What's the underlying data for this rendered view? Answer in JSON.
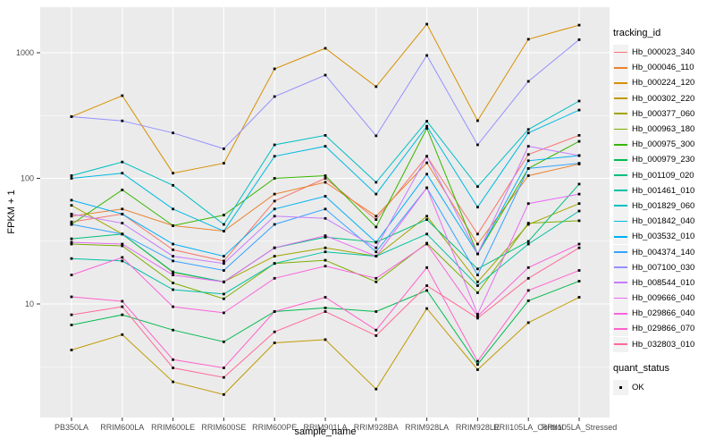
{
  "chart_data": {
    "type": "line",
    "title": "",
    "xlabel": "sample_name",
    "ylabel": "FPKM + 1",
    "y_scale": "log10",
    "y_ticks": [
      10,
      100,
      1000
    ],
    "y_minor_ticks": [
      3.162,
      31.62,
      316.2
    ],
    "ylim": [
      1.25,
      2300
    ],
    "legend_position": "right",
    "grid": "on",
    "panel_bg": "#EBEBEB",
    "grid_color": "#FFFFFF",
    "point_color": "#000000",
    "tick_label_color": "#4D4D4D",
    "categories": [
      "PB350LA",
      "RRIM600LA",
      "RRIM600LE",
      "RRIM600SE",
      "RRIM600PE",
      "RRIM901LA",
      "RRIM928BA",
      "RRIM928LA",
      "RRIM928LE",
      "RRII105LA_Control",
      "RRII105LA_Stressed"
    ],
    "series": [
      {
        "name": "Hb_000023_340",
        "color": "#F8766D",
        "values": [
          45,
          52,
          27,
          22,
          66,
          100,
          47,
          150,
          36,
          155,
          220
        ]
      },
      {
        "name": "Hb_000046_110",
        "color": "#EA8331",
        "values": [
          50,
          57,
          42,
          38,
          75,
          93,
          50,
          133,
          30,
          105,
          130
        ]
      },
      {
        "name": "Hb_000224_120",
        "color": "#D89000",
        "values": [
          310,
          455,
          110,
          132,
          745,
          1085,
          537,
          1690,
          288,
          1280,
          1660
        ]
      },
      {
        "name": "Hb_000302_220",
        "color": "#C09B00",
        "values": [
          4.3,
          5.7,
          2.4,
          1.9,
          4.9,
          5.2,
          2.1,
          9.2,
          3,
          7.1,
          11.3
        ]
      },
      {
        "name": "Hb_000377_060",
        "color": "#A3A500",
        "values": [
          61,
          36,
          17.8,
          15,
          24,
          28,
          24,
          50,
          15,
          43,
          63
        ]
      },
      {
        "name": "Hb_000963_180",
        "color": "#7CAE00",
        "values": [
          30,
          29,
          14.7,
          11,
          21,
          22.3,
          15,
          30.5,
          12.3,
          44,
          46
        ]
      },
      {
        "name": "Hb_000975_300",
        "color": "#39B600",
        "values": [
          43,
          81,
          42,
          51,
          100,
          105,
          41,
          250,
          25,
          120,
          197
        ]
      },
      {
        "name": "Hb_000979_230",
        "color": "#00BB4E",
        "values": [
          6.8,
          8.2,
          6.2,
          5,
          8.7,
          9.3,
          8.7,
          12.8,
          3.3,
          10.6,
          15.2
        ]
      },
      {
        "name": "Hb_001109_020",
        "color": "#00BF7D",
        "values": [
          33,
          36,
          18,
          15,
          28,
          34,
          31,
          47,
          19,
          31.5,
          90
        ]
      },
      {
        "name": "Hb_001461_010",
        "color": "#00C1A3",
        "values": [
          23,
          22,
          13,
          12,
          21,
          26,
          24,
          36,
          14,
          30,
          55
        ]
      },
      {
        "name": "Hb_001829_060",
        "color": "#00BFC4",
        "values": [
          105,
          135,
          88,
          43,
          185,
          220,
          93,
          285,
          86,
          245,
          413
        ]
      },
      {
        "name": "Hb_001842_040",
        "color": "#00BAE0",
        "values": [
          100,
          110,
          57,
          38,
          150,
          180,
          75,
          260,
          59,
          230,
          350
        ]
      },
      {
        "name": "Hb_003532_010",
        "color": "#00B0F6",
        "values": [
          67,
          52,
          30,
          24,
          57,
          72,
          31,
          108,
          25,
          138,
          152
        ]
      },
      {
        "name": "Hb_004374_140",
        "color": "#35A2FF",
        "values": [
          43,
          36,
          22,
          18.5,
          43,
          57,
          26,
          84,
          17,
          120,
          132
        ]
      },
      {
        "name": "Hb_007100_030",
        "color": "#9590FF",
        "values": [
          310,
          287,
          230,
          172,
          448,
          664,
          218,
          952,
          185,
          592,
          1270
        ]
      },
      {
        "name": "Hb_008544_010",
        "color": "#C77CFF",
        "values": [
          52,
          44,
          24,
          21,
          50,
          48,
          28,
          150,
          25,
          180,
          152
        ]
      },
      {
        "name": "Hb_009666_040",
        "color": "#E76BF3",
        "values": [
          31,
          30,
          17,
          15,
          28,
          35,
          24,
          84,
          8.3,
          63,
          75
        ]
      },
      {
        "name": "Hb_029866_040",
        "color": "#FA62DB",
        "values": [
          17,
          23.5,
          9.5,
          8.5,
          16,
          20,
          16,
          30,
          8,
          19.5,
          30
        ]
      },
      {
        "name": "Hb_029866_070",
        "color": "#FF61CC",
        "values": [
          11.4,
          10.5,
          3.6,
          3.1,
          8.7,
          11.3,
          6.2,
          19.5,
          3.5,
          12.8,
          18.5
        ]
      },
      {
        "name": "Hb_032803_010",
        "color": "#FF6A98",
        "values": [
          8.2,
          9.5,
          3.1,
          2.6,
          6,
          8.7,
          5.6,
          14,
          7.7,
          16,
          28
        ]
      }
    ]
  },
  "legend": {
    "tracking_title": "tracking_id",
    "quant_title": "quant_status",
    "quant_items": [
      {
        "label": "OK"
      }
    ]
  }
}
